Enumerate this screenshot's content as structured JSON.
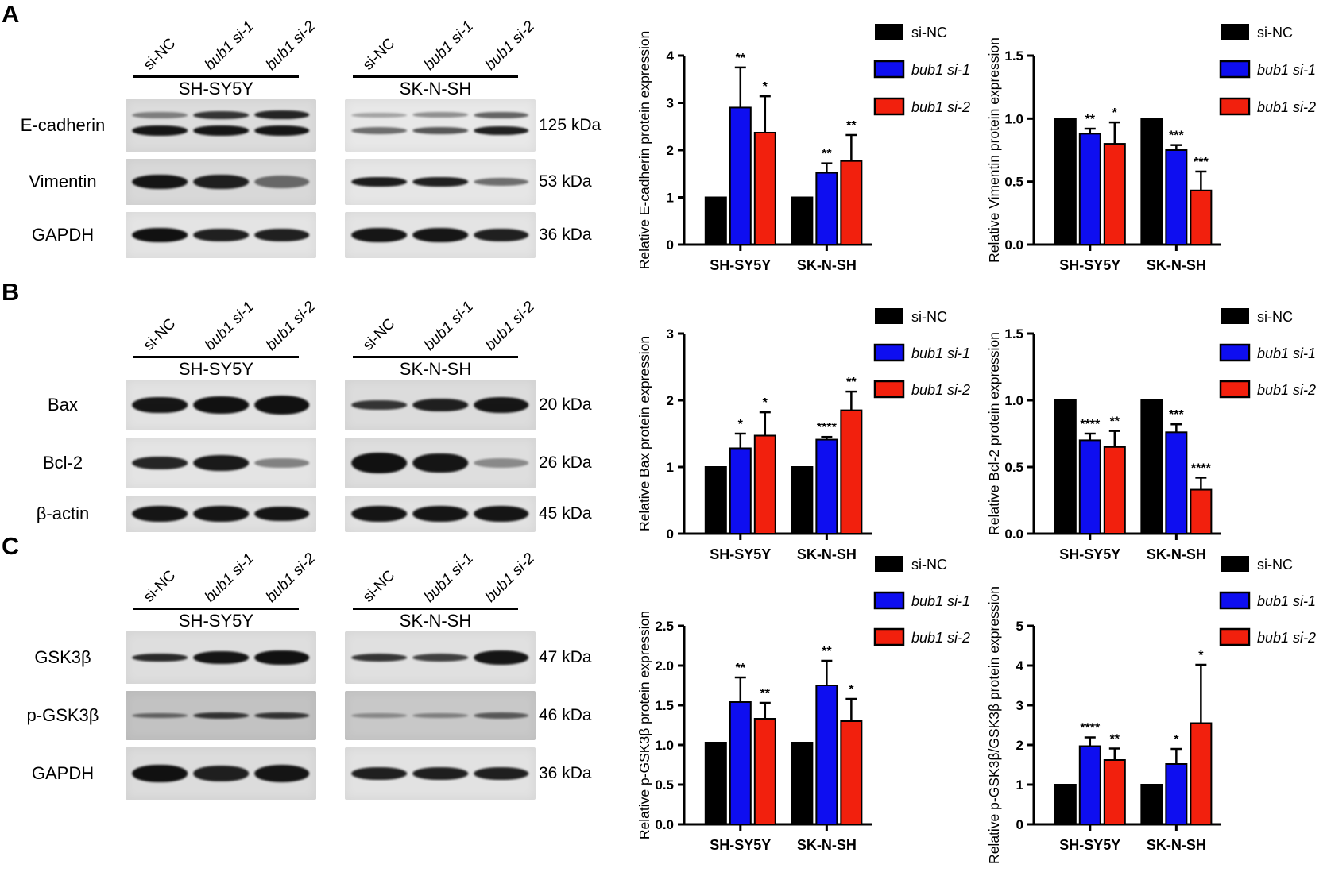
{
  "legend": [
    {
      "label": "si-NC",
      "color": "#000000",
      "italic": false
    },
    {
      "label": "bub1 si-1",
      "color": "#0e0ef0",
      "italic": true
    },
    {
      "label": "bub1 si-2",
      "color": "#f2200d",
      "italic": true
    }
  ],
  "lanes": [
    {
      "label": "si-NC",
      "italic": false
    },
    {
      "label": "bub1 si-1",
      "italic": true
    },
    {
      "label": "bub1 si-2",
      "italic": true
    }
  ],
  "chart_data": [
    {
      "panel": "A",
      "slot": 0,
      "type": "bar",
      "title": "",
      "xlabel": "",
      "ylabel": "Relative E-cadherin protein expression",
      "ylim": [
        0,
        4
      ],
      "yticks": [
        0,
        1,
        2,
        3,
        4
      ],
      "ytick_labels": [
        "0",
        "1",
        "2",
        "3",
        "4"
      ],
      "grid": false,
      "legend_position": "top-right",
      "categories": [
        "SH-SY5Y",
        "SK-N-SH"
      ],
      "series": [
        {
          "name": "si-NC",
          "color": "#000000",
          "values": [
            1.0,
            1.0
          ],
          "errors": [
            0,
            0
          ],
          "sig": [
            "",
            ""
          ]
        },
        {
          "name": "bub1 si-1",
          "color": "#0e0ef0",
          "values": [
            2.9,
            1.52
          ],
          "errors": [
            0.85,
            0.2
          ],
          "sig": [
            "**",
            "**"
          ]
        },
        {
          "name": "bub1 si-2",
          "color": "#f2200d",
          "values": [
            2.37,
            1.77
          ],
          "errors": [
            0.77,
            0.55
          ],
          "sig": [
            "*",
            "**"
          ]
        }
      ]
    },
    {
      "panel": "A",
      "slot": 1,
      "type": "bar",
      "title": "",
      "xlabel": "",
      "ylabel": "Relative Vimentin protein expression",
      "ylim": [
        0,
        1.5
      ],
      "yticks": [
        0,
        0.5,
        1.0,
        1.5
      ],
      "ytick_labels": [
        "0.0",
        "0.5",
        "1.0",
        "1.5"
      ],
      "grid": false,
      "legend_position": "top-right",
      "categories": [
        "SH-SY5Y",
        "SK-N-SH"
      ],
      "series": [
        {
          "name": "si-NC",
          "color": "#000000",
          "values": [
            1.0,
            1.0
          ],
          "errors": [
            0,
            0
          ],
          "sig": [
            "",
            ""
          ]
        },
        {
          "name": "bub1 si-1",
          "color": "#0e0ef0",
          "values": [
            0.88,
            0.75
          ],
          "errors": [
            0.04,
            0.04
          ],
          "sig": [
            "**",
            "***"
          ]
        },
        {
          "name": "bub1 si-2",
          "color": "#f2200d",
          "values": [
            0.8,
            0.43
          ],
          "errors": [
            0.17,
            0.15
          ],
          "sig": [
            "*",
            "***"
          ]
        }
      ]
    },
    {
      "panel": "B",
      "slot": 0,
      "type": "bar",
      "title": "",
      "xlabel": "",
      "ylabel": "Relative Bax protein expression",
      "ylim": [
        0,
        3
      ],
      "yticks": [
        0,
        1,
        2,
        3
      ],
      "ytick_labels": [
        "0",
        "1",
        "2",
        "3"
      ],
      "grid": false,
      "legend_position": "top-right",
      "categories": [
        "SH-SY5Y",
        "SK-N-SH"
      ],
      "series": [
        {
          "name": "si-NC",
          "color": "#000000",
          "values": [
            1.0,
            1.0
          ],
          "errors": [
            0,
            0
          ],
          "sig": [
            "",
            ""
          ]
        },
        {
          "name": "bub1 si-1",
          "color": "#0e0ef0",
          "values": [
            1.28,
            1.41
          ],
          "errors": [
            0.22,
            0.04
          ],
          "sig": [
            "*",
            "****"
          ]
        },
        {
          "name": "bub1 si-2",
          "color": "#f2200d",
          "values": [
            1.47,
            1.85
          ],
          "errors": [
            0.35,
            0.28
          ],
          "sig": [
            "*",
            "**"
          ]
        }
      ]
    },
    {
      "panel": "B",
      "slot": 1,
      "type": "bar",
      "title": "",
      "xlabel": "",
      "ylabel": "Relative Bcl-2 protein expression",
      "ylim": [
        0,
        1.5
      ],
      "yticks": [
        0,
        0.5,
        1.0,
        1.5
      ],
      "ytick_labels": [
        "0.0",
        "0.5",
        "1.0",
        "1.5"
      ],
      "grid": false,
      "legend_position": "top-right",
      "categories": [
        "SH-SY5Y",
        "SK-N-SH"
      ],
      "series": [
        {
          "name": "si-NC",
          "color": "#000000",
          "values": [
            1.0,
            1.0
          ],
          "errors": [
            0,
            0
          ],
          "sig": [
            "",
            ""
          ]
        },
        {
          "name": "bub1 si-1",
          "color": "#0e0ef0",
          "values": [
            0.7,
            0.76
          ],
          "errors": [
            0.05,
            0.06
          ],
          "sig": [
            "****",
            "***"
          ]
        },
        {
          "name": "bub1 si-2",
          "color": "#f2200d",
          "values": [
            0.65,
            0.33
          ],
          "errors": [
            0.12,
            0.09
          ],
          "sig": [
            "**",
            "****"
          ]
        }
      ]
    },
    {
      "panel": "C",
      "slot": 0,
      "type": "bar",
      "title": "",
      "xlabel": "",
      "ylabel": "Relative p-GSK3β protein expression",
      "ylim": [
        0,
        2.5
      ],
      "yticks": [
        0,
        0.5,
        1.0,
        1.5,
        2.0,
        2.5
      ],
      "ytick_labels": [
        "0.0",
        "0.5",
        "1.0",
        "1.5",
        "2.0",
        "2.5"
      ],
      "grid": false,
      "legend_position": "top-right",
      "categories": [
        "SH-SY5Y",
        "SK-N-SH"
      ],
      "series": [
        {
          "name": "si-NC",
          "color": "#000000",
          "values": [
            1.03,
            1.03
          ],
          "errors": [
            0,
            0
          ],
          "sig": [
            "",
            ""
          ]
        },
        {
          "name": "bub1 si-1",
          "color": "#0e0ef0",
          "values": [
            1.54,
            1.75
          ],
          "errors": [
            0.31,
            0.31
          ],
          "sig": [
            "**",
            "**"
          ]
        },
        {
          "name": "bub1 si-2",
          "color": "#f2200d",
          "values": [
            1.33,
            1.3
          ],
          "errors": [
            0.2,
            0.28
          ],
          "sig": [
            "**",
            "*"
          ]
        }
      ]
    },
    {
      "panel": "C",
      "slot": 1,
      "type": "bar",
      "title": "",
      "xlabel": "",
      "ylabel": "Relative p-GSK3β/GSK3β protein expression",
      "ylim": [
        0,
        5
      ],
      "yticks": [
        0,
        1,
        2,
        3,
        4,
        5
      ],
      "ytick_labels": [
        "0",
        "1",
        "2",
        "3",
        "4",
        "5"
      ],
      "grid": false,
      "legend_position": "top-right",
      "categories": [
        "SH-SY5Y",
        "SK-N-SH"
      ],
      "series": [
        {
          "name": "si-NC",
          "color": "#000000",
          "values": [
            1.0,
            1.0
          ],
          "errors": [
            0,
            0
          ],
          "sig": [
            "",
            ""
          ]
        },
        {
          "name": "bub1 si-1",
          "color": "#0e0ef0",
          "values": [
            1.97,
            1.52
          ],
          "errors": [
            0.22,
            0.38
          ],
          "sig": [
            "****",
            "*"
          ]
        },
        {
          "name": "bub1 si-2",
          "color": "#f2200d",
          "values": [
            1.62,
            2.55
          ],
          "errors": [
            0.29,
            1.47
          ],
          "sig": [
            "**",
            "*"
          ]
        }
      ]
    }
  ],
  "panels": [
    {
      "label": "A",
      "row_labels": [
        "E-cadherin",
        "Vimentin",
        "GAPDH"
      ],
      "kda_labels": [
        "125 kDa",
        "53 kDa",
        "36 kDa"
      ],
      "blots": [
        {
          "cell_line": "SH-SY5Y",
          "rows": [
            {
              "bg": "#dcdcdc",
              "lanes": [
                [
                  [
                    0.45,
                    0.13
                  ],
                  [
                    0.95,
                    0.2
                  ]
                ],
                [
                  [
                    0.8,
                    0.15
                  ],
                  [
                    0.95,
                    0.2
                  ]
                ],
                [
                  [
                    0.88,
                    0.17
                  ],
                  [
                    0.95,
                    0.2
                  ]
                ]
              ]
            },
            {
              "bg": "#d8d8d8",
              "lanes": [
                [
                  [
                    0.95,
                    0.3
                  ]
                ],
                [
                  [
                    0.9,
                    0.3
                  ]
                ],
                [
                  [
                    0.55,
                    0.26
                  ]
                ]
              ]
            },
            {
              "bg": "#e4e4e4",
              "lanes": [
                [
                  [
                    0.97,
                    0.3
                  ]
                ],
                [
                  [
                    0.9,
                    0.28
                  ]
                ],
                [
                  [
                    0.9,
                    0.28
                  ]
                ]
              ]
            }
          ]
        },
        {
          "cell_line": "SK-N-SH",
          "rows": [
            {
              "bg": "#e8e8e8",
              "lanes": [
                [
                  [
                    0.3,
                    0.1
                  ],
                  [
                    0.55,
                    0.13
                  ]
                ],
                [
                  [
                    0.4,
                    0.11
                  ],
                  [
                    0.65,
                    0.14
                  ]
                ],
                [
                  [
                    0.6,
                    0.13
                  ],
                  [
                    0.9,
                    0.17
                  ]
                ]
              ]
            },
            {
              "bg": "#e6e6e6",
              "lanes": [
                [
                  [
                    0.92,
                    0.22
                  ]
                ],
                [
                  [
                    0.9,
                    0.22
                  ]
                ],
                [
                  [
                    0.55,
                    0.16
                  ]
                ]
              ]
            },
            {
              "bg": "#e4e4e4",
              "lanes": [
                [
                  [
                    0.95,
                    0.3
                  ]
                ],
                [
                  [
                    0.95,
                    0.3
                  ]
                ],
                [
                  [
                    0.9,
                    0.28
                  ]
                ]
              ]
            }
          ]
        }
      ]
    },
    {
      "label": "B",
      "row_labels": [
        "Bax",
        "Bcl-2",
        "β-actin"
      ],
      "kda_labels": [
        "20 kDa",
        "26 kDa",
        "45 kDa"
      ],
      "blots": [
        {
          "cell_line": "SH-SY5Y",
          "rows": [
            {
              "bg": "#e2e2e2",
              "lanes": [
                [
                  [
                    0.95,
                    0.32
                  ]
                ],
                [
                  [
                    0.97,
                    0.34
                  ]
                ],
                [
                  [
                    0.97,
                    0.36
                  ]
                ]
              ]
            },
            {
              "bg": "#e4e4e4",
              "lanes": [
                [
                  [
                    0.88,
                    0.26
                  ]
                ],
                [
                  [
                    0.93,
                    0.3
                  ]
                ],
                [
                  [
                    0.45,
                    0.2
                  ]
                ]
              ]
            },
            {
              "bg": "#e0e0e0",
              "lanes": [
                [
                  [
                    0.95,
                    0.42
                  ]
                ],
                [
                  [
                    0.95,
                    0.42
                  ]
                ],
                [
                  [
                    0.95,
                    0.4
                  ]
                ]
              ]
            }
          ]
        },
        {
          "cell_line": "SK-N-SH",
          "rows": [
            {
              "bg": "#dcdcdc",
              "lanes": [
                [
                  [
                    0.8,
                    0.2
                  ]
                ],
                [
                  [
                    0.9,
                    0.26
                  ]
                ],
                [
                  [
                    0.95,
                    0.3
                  ]
                ]
              ]
            },
            {
              "bg": "#dedede",
              "lanes": [
                [
                  [
                    0.97,
                    0.4
                  ]
                ],
                [
                  [
                    0.95,
                    0.38
                  ]
                ],
                [
                  [
                    0.4,
                    0.18
                  ]
                ]
              ]
            },
            {
              "bg": "#e2e2e2",
              "lanes": [
                [
                  [
                    0.95,
                    0.42
                  ]
                ],
                [
                  [
                    0.95,
                    0.42
                  ]
                ],
                [
                  [
                    0.95,
                    0.42
                  ]
                ]
              ]
            }
          ]
        }
      ]
    },
    {
      "label": "C",
      "row_labels": [
        "GSK3β",
        "p-GSK3β",
        "GAPDH"
      ],
      "kda_labels": [
        "47 kDa",
        "46 kDa",
        "36 kDa"
      ],
      "blots": [
        {
          "cell_line": "SH-SY5Y",
          "rows": [
            {
              "bg": "#dedede",
              "lanes": [
                [
                  [
                    0.85,
                    0.16
                  ]
                ],
                [
                  [
                    0.95,
                    0.24
                  ]
                ],
                [
                  [
                    0.97,
                    0.28
                  ]
                ]
              ]
            },
            {
              "bg": "#c2c2c2",
              "lanes": [
                [
                  [
                    0.55,
                    0.1
                  ]
                ],
                [
                  [
                    0.8,
                    0.12
                  ]
                ],
                [
                  [
                    0.8,
                    0.12
                  ]
                ]
              ]
            },
            {
              "bg": "#dcdcdc",
              "lanes": [
                [
                  [
                    0.97,
                    0.34
                  ]
                ],
                [
                  [
                    0.9,
                    0.3
                  ]
                ],
                [
                  [
                    0.95,
                    0.32
                  ]
                ]
              ]
            }
          ]
        },
        {
          "cell_line": "SK-N-SH",
          "rows": [
            {
              "bg": "#e0e0e0",
              "lanes": [
                [
                  [
                    0.8,
                    0.14
                  ]
                ],
                [
                  [
                    0.75,
                    0.14
                  ]
                ],
                [
                  [
                    0.95,
                    0.26
                  ]
                ]
              ]
            },
            {
              "bg": "#c8c8c8",
              "lanes": [
                [
                  [
                    0.35,
                    0.1
                  ]
                ],
                [
                  [
                    0.4,
                    0.1
                  ]
                ],
                [
                  [
                    0.6,
                    0.12
                  ]
                ]
              ]
            },
            {
              "bg": "#e2e2e2",
              "lanes": [
                [
                  [
                    0.9,
                    0.24
                  ]
                ],
                [
                  [
                    0.9,
                    0.24
                  ]
                ],
                [
                  [
                    0.9,
                    0.24
                  ]
                ]
              ]
            }
          ]
        }
      ]
    }
  ]
}
